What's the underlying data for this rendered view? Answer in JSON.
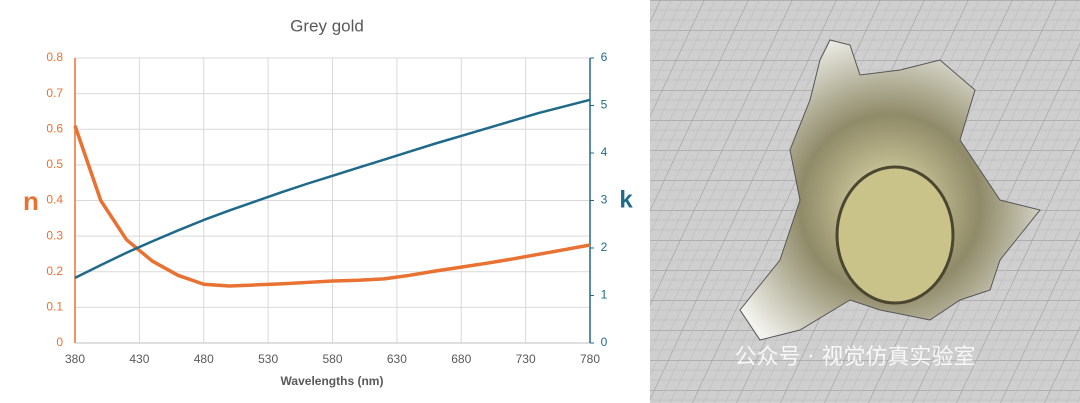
{
  "chart_data": {
    "type": "line",
    "title": "Grey gold",
    "x_label": "Wavelengths (nm)",
    "y_label": "n",
    "y2_label": "k",
    "x": [
      380,
      400,
      420,
      440,
      460,
      480,
      500,
      520,
      540,
      560,
      580,
      600,
      620,
      640,
      660,
      680,
      700,
      720,
      740,
      760,
      780
    ],
    "series": [
      {
        "name": "n",
        "color": "#e97132",
        "values": [
          0.61,
          0.4,
          0.29,
          0.23,
          0.19,
          0.165,
          0.16,
          0.163,
          0.166,
          0.17,
          0.174,
          0.176,
          0.18,
          0.19,
          0.202,
          0.213,
          0.224,
          0.236,
          0.249,
          0.262,
          0.275
        ]
      },
      {
        "name": "k",
        "color": "#1f6a8a",
        "axis": "y2",
        "values": [
          1.37,
          1.64,
          1.9,
          2.14,
          2.37,
          2.59,
          2.79,
          2.98,
          3.17,
          3.35,
          3.52,
          3.69,
          3.86,
          4.03,
          4.2,
          4.36,
          4.52,
          4.68,
          4.84,
          4.98,
          5.12
        ]
      }
    ],
    "xlim": [
      380,
      780
    ],
    "xticks": [
      380,
      430,
      480,
      530,
      580,
      630,
      680,
      730,
      780
    ],
    "ylim": [
      0,
      0.8
    ],
    "yticks": [
      0,
      0.1,
      0.2,
      0.3,
      0.4,
      0.5,
      0.6,
      0.7,
      0.8
    ],
    "y2lim": [
      0,
      6
    ],
    "y2ticks": [
      0,
      1,
      2,
      3,
      4,
      5,
      6
    ],
    "grid": true
  },
  "watermark": "公众号 · 视觉仿真实验室"
}
